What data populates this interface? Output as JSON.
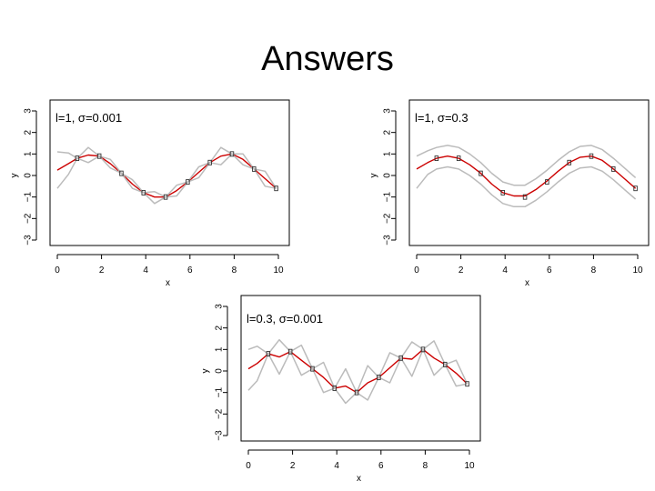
{
  "slide": {
    "title": "Answers"
  },
  "chart_data": [
    {
      "type": "line",
      "title": "l=1, σ=0.001",
      "xlabel": "x",
      "ylabel": "y",
      "xlim": [
        0,
        10
      ],
      "ylim": [
        -3,
        3
      ],
      "xticks": [
        0,
        2,
        4,
        6,
        8,
        10
      ],
      "yticks": [
        -3,
        -2,
        -1,
        0,
        1,
        2,
        3
      ],
      "ytick_labels": [
        "−3",
        "−2",
        "−1",
        "0",
        "1",
        "2",
        "3"
      ],
      "observations": {
        "x": [
          0.9,
          1.9,
          2.9,
          3.9,
          4.9,
          5.9,
          6.9,
          7.9,
          8.9,
          9.9
        ],
        "y": [
          0.8,
          0.9,
          0.1,
          -0.8,
          -1.0,
          -0.3,
          0.6,
          1.0,
          0.3,
          -0.6
        ]
      },
      "series": [
        {
          "role": "mean",
          "color": "#cc0000",
          "x": [
            0,
            0.5,
            0.9,
            1.4,
            1.9,
            2.4,
            2.9,
            3.4,
            3.9,
            4.4,
            4.9,
            5.4,
            5.9,
            6.4,
            6.9,
            7.4,
            7.9,
            8.4,
            8.9,
            9.4,
            9.9
          ],
          "y": [
            0.25,
            0.55,
            0.8,
            0.95,
            0.9,
            0.55,
            0.1,
            -0.4,
            -0.8,
            -1.0,
            -1.0,
            -0.7,
            -0.3,
            0.15,
            0.6,
            0.9,
            1.0,
            0.75,
            0.3,
            -0.15,
            -0.6
          ]
        },
        {
          "role": "upper",
          "color": "#bbbbbb",
          "x": [
            0,
            0.5,
            0.9,
            1.4,
            1.9,
            2.4,
            2.9,
            3.4,
            3.9,
            4.4,
            4.9,
            5.4,
            5.9,
            6.4,
            6.9,
            7.4,
            7.9,
            8.4,
            8.9,
            9.4,
            9.9
          ],
          "y": [
            1.1,
            1.05,
            0.8,
            1.3,
            0.9,
            0.75,
            0.1,
            -0.2,
            -0.8,
            -0.75,
            -1.0,
            -0.45,
            -0.3,
            0.4,
            0.6,
            1.3,
            1.0,
            1.0,
            0.3,
            0.2,
            -0.6
          ]
        },
        {
          "role": "lower",
          "color": "#bbbbbb",
          "x": [
            0,
            0.5,
            0.9,
            1.4,
            1.9,
            2.4,
            2.9,
            3.4,
            3.9,
            4.4,
            4.9,
            5.4,
            5.9,
            6.4,
            6.9,
            7.4,
            7.9,
            8.4,
            8.9,
            9.4,
            9.9
          ],
          "y": [
            -0.6,
            0.05,
            0.8,
            0.6,
            0.9,
            0.35,
            0.1,
            -0.6,
            -0.8,
            -1.3,
            -1.0,
            -0.95,
            -0.3,
            -0.1,
            0.6,
            0.5,
            1.0,
            0.5,
            0.3,
            -0.5,
            -0.6
          ]
        }
      ]
    },
    {
      "type": "line",
      "title": "l=1, σ=0.3",
      "xlabel": "x",
      "ylabel": "y",
      "xlim": [
        0,
        10
      ],
      "ylim": [
        -3,
        3
      ],
      "xticks": [
        0,
        2,
        4,
        6,
        8,
        10
      ],
      "yticks": [
        -3,
        -2,
        -1,
        0,
        1,
        2,
        3
      ],
      "ytick_labels": [
        "−3",
        "−2",
        "−1",
        "0",
        "1",
        "2",
        "3"
      ],
      "observations": {
        "x": [
          0.9,
          1.9,
          2.9,
          3.9,
          4.9,
          5.9,
          6.9,
          7.9,
          8.9,
          9.9
        ],
        "y": [
          0.8,
          0.8,
          0.1,
          -0.8,
          -1.0,
          -0.3,
          0.6,
          0.9,
          0.3,
          -0.6
        ]
      },
      "series": [
        {
          "role": "mean",
          "color": "#cc0000",
          "x": [
            0,
            0.5,
            0.9,
            1.4,
            1.9,
            2.4,
            2.9,
            3.4,
            3.9,
            4.4,
            4.9,
            5.4,
            5.9,
            6.4,
            6.9,
            7.4,
            7.9,
            8.4,
            8.9,
            9.4,
            9.9
          ],
          "y": [
            0.3,
            0.6,
            0.8,
            0.9,
            0.8,
            0.5,
            0.1,
            -0.4,
            -0.8,
            -0.95,
            -0.95,
            -0.65,
            -0.25,
            0.2,
            0.6,
            0.85,
            0.9,
            0.7,
            0.3,
            -0.15,
            -0.6
          ]
        },
        {
          "role": "upper",
          "color": "#bbbbbb",
          "x": [
            0,
            0.5,
            0.9,
            1.4,
            1.9,
            2.4,
            2.9,
            3.4,
            3.9,
            4.4,
            4.9,
            5.4,
            5.9,
            6.4,
            6.9,
            7.4,
            7.9,
            8.4,
            8.9,
            9.4,
            9.9
          ],
          "y": [
            0.9,
            1.15,
            1.3,
            1.4,
            1.3,
            1.0,
            0.6,
            0.1,
            -0.3,
            -0.45,
            -0.45,
            -0.15,
            0.25,
            0.7,
            1.1,
            1.35,
            1.4,
            1.2,
            0.8,
            0.35,
            -0.1
          ]
        },
        {
          "role": "lower",
          "color": "#bbbbbb",
          "x": [
            0,
            0.5,
            0.9,
            1.4,
            1.9,
            2.4,
            2.9,
            3.4,
            3.9,
            4.4,
            4.9,
            5.4,
            5.9,
            6.4,
            6.9,
            7.4,
            7.9,
            8.4,
            8.9,
            9.4,
            9.9
          ],
          "y": [
            -0.6,
            0.05,
            0.3,
            0.4,
            0.3,
            0.0,
            -0.4,
            -0.9,
            -1.3,
            -1.45,
            -1.45,
            -1.15,
            -0.75,
            -0.3,
            0.1,
            0.35,
            0.4,
            0.2,
            -0.2,
            -0.65,
            -1.1
          ]
        }
      ]
    },
    {
      "type": "line",
      "title": "l=0.3, σ=0.001",
      "xlabel": "x",
      "ylabel": "y",
      "xlim": [
        0,
        10
      ],
      "ylim": [
        -3,
        3
      ],
      "xticks": [
        0,
        2,
        4,
        6,
        8,
        10
      ],
      "yticks": [
        -3,
        -2,
        -1,
        0,
        1,
        2,
        3
      ],
      "ytick_labels": [
        "−3",
        "−2",
        "−1",
        "0",
        "1",
        "2",
        "3"
      ],
      "observations": {
        "x": [
          0.9,
          1.9,
          2.9,
          3.9,
          4.9,
          5.9,
          6.9,
          7.9,
          8.9,
          9.9
        ],
        "y": [
          0.8,
          0.9,
          0.1,
          -0.8,
          -1.0,
          -0.3,
          0.6,
          1.0,
          0.3,
          -0.6
        ]
      },
      "series": [
        {
          "role": "mean",
          "color": "#cc0000",
          "x": [
            0,
            0.4,
            0.9,
            1.4,
            1.9,
            2.4,
            2.9,
            3.4,
            3.9,
            4.4,
            4.9,
            5.4,
            5.9,
            6.4,
            6.9,
            7.4,
            7.9,
            8.4,
            8.9,
            9.4,
            9.9
          ],
          "y": [
            0.1,
            0.35,
            0.8,
            0.65,
            0.9,
            0.5,
            0.1,
            -0.3,
            -0.8,
            -0.7,
            -1.0,
            -0.55,
            -0.3,
            0.15,
            0.6,
            0.55,
            1.0,
            0.6,
            0.3,
            -0.1,
            -0.6
          ]
        },
        {
          "role": "upper",
          "color": "#bbbbbb",
          "x": [
            0,
            0.4,
            0.9,
            1.4,
            1.9,
            2.4,
            2.9,
            3.4,
            3.9,
            4.4,
            4.9,
            5.4,
            5.9,
            6.4,
            6.9,
            7.4,
            7.9,
            8.4,
            8.9,
            9.4,
            9.9
          ],
          "y": [
            1.0,
            1.15,
            0.8,
            1.45,
            0.9,
            1.2,
            0.1,
            0.4,
            -0.8,
            0.1,
            -1.0,
            0.25,
            -0.3,
            0.85,
            0.6,
            1.35,
            1.0,
            1.4,
            0.3,
            0.5,
            -0.6
          ]
        },
        {
          "role": "lower",
          "color": "#bbbbbb",
          "x": [
            0,
            0.4,
            0.9,
            1.4,
            1.9,
            2.4,
            2.9,
            3.4,
            3.9,
            4.4,
            4.9,
            5.4,
            5.9,
            6.4,
            6.9,
            7.4,
            7.9,
            8.4,
            8.9,
            9.4,
            9.9
          ],
          "y": [
            -0.9,
            -0.45,
            0.8,
            -0.15,
            0.9,
            -0.2,
            0.1,
            -1.0,
            -0.8,
            -1.5,
            -1.0,
            -1.35,
            -0.3,
            -0.55,
            0.6,
            -0.25,
            1.0,
            -0.2,
            0.3,
            -0.7,
            -0.6
          ]
        }
      ]
    }
  ]
}
